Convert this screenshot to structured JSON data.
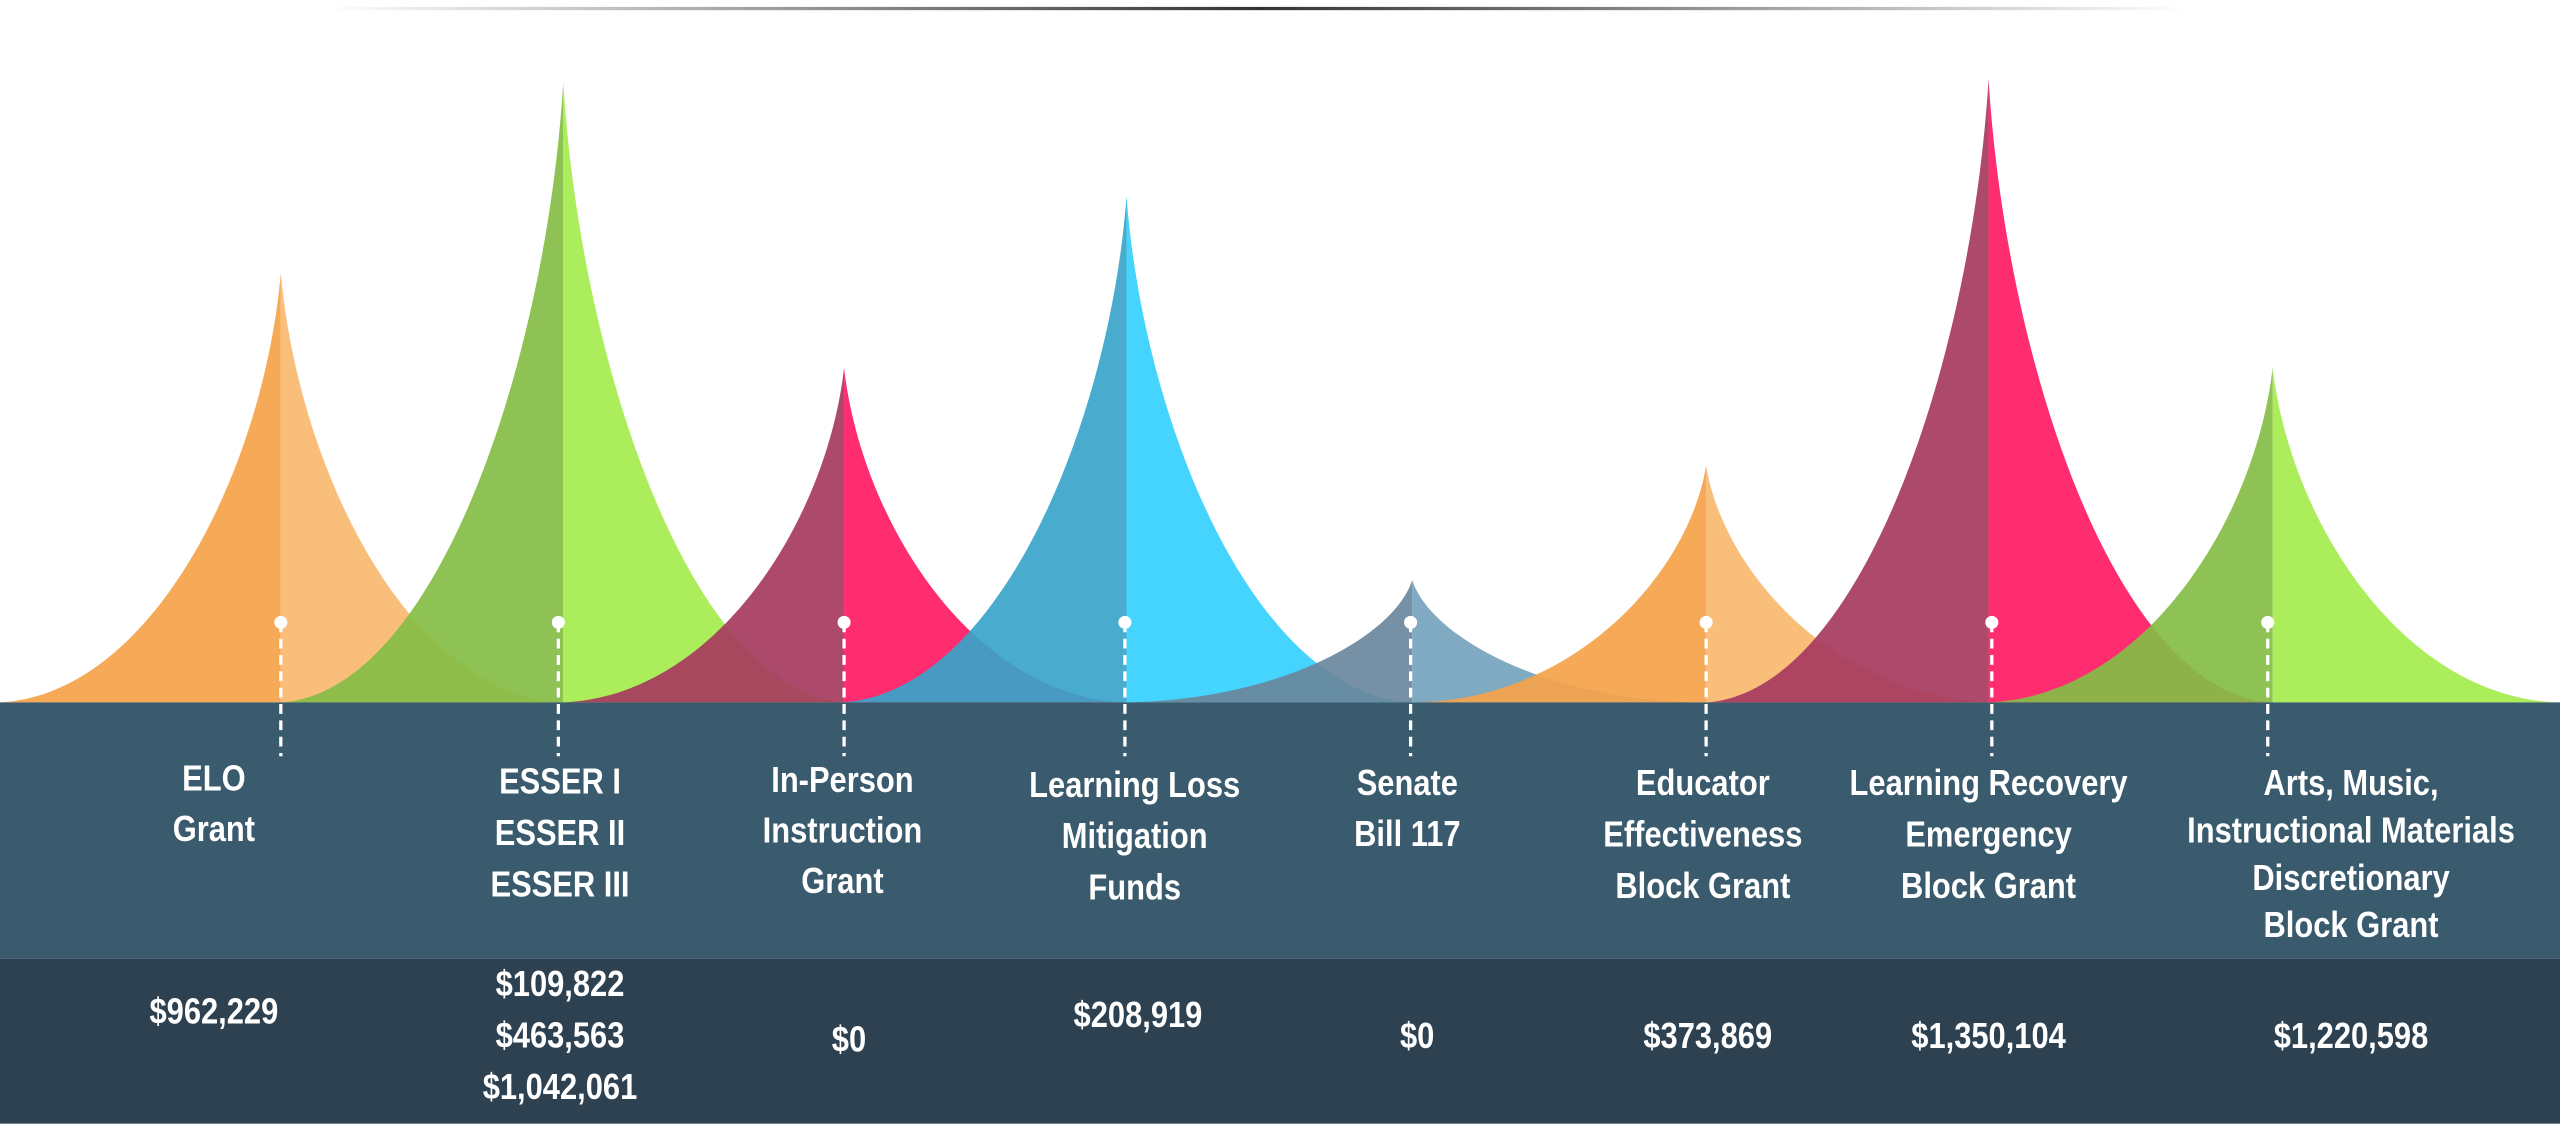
{
  "items": [
    {
      "label": [
        "ELO",
        "Grant"
      ],
      "amounts": [
        "$962,229"
      ]
    },
    {
      "label": [
        "ESSER I",
        "ESSER II",
        "ESSER III"
      ],
      "amounts": [
        "$109,822",
        "$463,563",
        "$1,042,061"
      ]
    },
    {
      "label": [
        "In-Person",
        "Instruction",
        "Grant"
      ],
      "amounts": [
        "$0"
      ]
    },
    {
      "label": [
        "Learning Loss",
        "Mitigation",
        "Funds"
      ],
      "amounts": [
        "$208,919"
      ]
    },
    {
      "label": [
        "Senate",
        "Bill 117"
      ],
      "amounts": [
        "$0"
      ]
    },
    {
      "label": [
        "Educator",
        "Effectiveness",
        "Block Grant"
      ],
      "amounts": [
        "$373,869"
      ]
    },
    {
      "label": [
        "Learning Recovery",
        "Emergency",
        "Block Grant"
      ],
      "amounts": [
        "$1,350,104"
      ]
    },
    {
      "label": [
        "Arts, Music,",
        "Instructional Materials",
        "Discretionary",
        "Block Grant"
      ],
      "amounts": [
        "$1,220,598"
      ]
    }
  ]
}
